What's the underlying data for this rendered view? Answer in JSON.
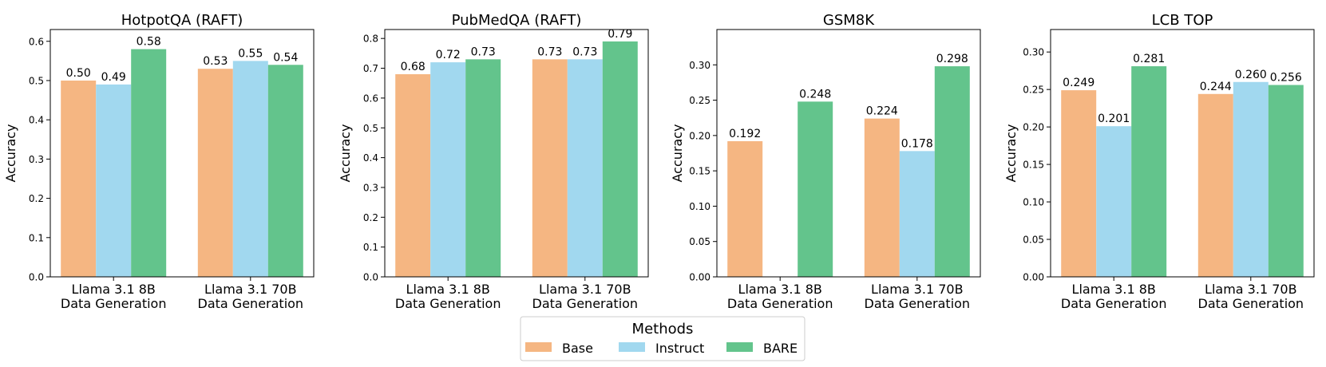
{
  "chart_data": [
    {
      "type": "bar",
      "title": "HotpotQA (RAFT)",
      "ylabel": "Accuracy",
      "xlabel": "",
      "ylim": [
        0,
        0.63
      ],
      "yticks": [
        "0.0",
        "0.1",
        "0.2",
        "0.3",
        "0.4",
        "0.5",
        "0.6"
      ],
      "categories": [
        [
          "Llama 3.1 8B",
          "Data Generation"
        ],
        [
          "Llama 3.1 70B",
          "Data Generation"
        ]
      ],
      "series": [
        {
          "name": "Base",
          "values": [
            0.5,
            0.53
          ],
          "labels": [
            "0.50",
            "0.53"
          ]
        },
        {
          "name": "Instruct",
          "values": [
            0.49,
            0.55
          ],
          "labels": [
            "0.49",
            "0.55"
          ]
        },
        {
          "name": "BARE",
          "values": [
            0.58,
            0.54
          ],
          "labels": [
            "0.58",
            "0.54"
          ]
        }
      ]
    },
    {
      "type": "bar",
      "title": "PubMedQA (RAFT)",
      "ylabel": "Accuracy",
      "xlabel": "",
      "ylim": [
        0,
        0.83
      ],
      "yticks": [
        "0.0",
        "0.1",
        "0.2",
        "0.3",
        "0.4",
        "0.5",
        "0.6",
        "0.7",
        "0.8"
      ],
      "categories": [
        [
          "Llama 3.1 8B",
          "Data Generation"
        ],
        [
          "Llama 3.1 70B",
          "Data Generation"
        ]
      ],
      "series": [
        {
          "name": "Base",
          "values": [
            0.68,
            0.73
          ],
          "labels": [
            "0.68",
            "0.73"
          ]
        },
        {
          "name": "Instruct",
          "values": [
            0.72,
            0.73
          ],
          "labels": [
            "0.72",
            "0.73"
          ]
        },
        {
          "name": "BARE",
          "values": [
            0.73,
            0.79
          ],
          "labels": [
            "0.73",
            "0.79"
          ]
        }
      ]
    },
    {
      "type": "bar",
      "title": "GSM8K",
      "ylabel": "Accuracy",
      "xlabel": "",
      "ylim": [
        0,
        0.35
      ],
      "yticks": [
        "0.00",
        "0.05",
        "0.10",
        "0.15",
        "0.20",
        "0.25",
        "0.30"
      ],
      "categories": [
        [
          "Llama 3.1 8B",
          "Data Generation"
        ],
        [
          "Llama 3.1 70B",
          "Data Generation"
        ]
      ],
      "series": [
        {
          "name": "Base",
          "values": [
            0.192,
            0.224
          ],
          "labels": [
            "0.192",
            "0.224"
          ]
        },
        {
          "name": "Instruct",
          "values": [
            null,
            0.178
          ],
          "labels": [
            null,
            "0.178"
          ]
        },
        {
          "name": "BARE",
          "values": [
            0.248,
            0.298
          ],
          "labels": [
            "0.248",
            "0.298"
          ]
        }
      ]
    },
    {
      "type": "bar",
      "title": "LCB TOP",
      "ylabel": "Accuracy",
      "xlabel": "",
      "ylim": [
        0,
        0.33
      ],
      "yticks": [
        "0.00",
        "0.05",
        "0.10",
        "0.15",
        "0.20",
        "0.25",
        "0.30"
      ],
      "categories": [
        [
          "Llama 3.1 8B",
          "Data Generation"
        ],
        [
          "Llama 3.1 70B",
          "Data Generation"
        ]
      ],
      "series": [
        {
          "name": "Base",
          "values": [
            0.249,
            0.244
          ],
          "labels": [
            "0.249",
            "0.244"
          ]
        },
        {
          "name": "Instruct",
          "values": [
            0.201,
            0.26
          ],
          "labels": [
            "0.201",
            "0.260"
          ]
        },
        {
          "name": "BARE",
          "values": [
            0.281,
            0.256
          ],
          "labels": [
            "0.281",
            "0.256"
          ]
        }
      ]
    }
  ],
  "legend": {
    "title": "Methods",
    "placement": "bottom-center",
    "items": [
      {
        "name": "Base",
        "color": "#F5B682"
      },
      {
        "name": "Instruct",
        "color": "#A1D8EF"
      },
      {
        "name": "BARE",
        "color": "#63C48C"
      }
    ]
  }
}
